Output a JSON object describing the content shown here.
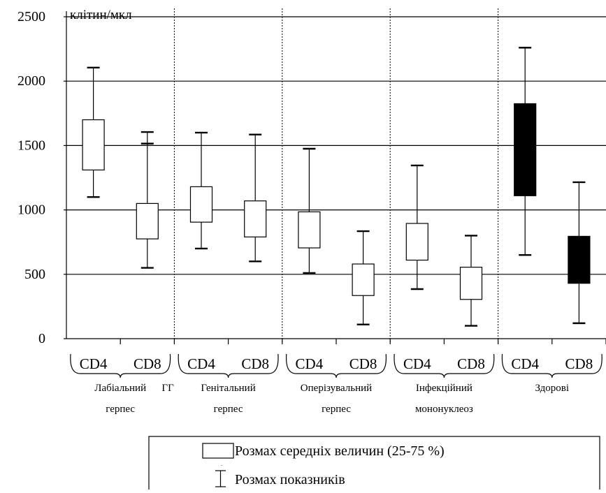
{
  "chart_data": {
    "type": "boxplot",
    "unit_label": "клітин/мкл",
    "ylim": [
      0,
      2500
    ],
    "yticks": [
      0,
      500,
      1000,
      1500,
      2000,
      2500
    ],
    "grid": "horizontal",
    "legend_position": "bottom-right",
    "groups": [
      {
        "line1": "Лабіальний",
        "line2": "герпес",
        "series": [
          {
            "name": "CD4",
            "min": 1100,
            "q1": 1310,
            "q3": 1700,
            "max": 2105,
            "fill": "#ffffff"
          },
          {
            "name": "CD8",
            "min": 550,
            "q1": 775,
            "q3": 1050,
            "max": 1605,
            "extra_whisker": 1515,
            "fill": "#ffffff"
          }
        ]
      },
      {
        "line1": "Генітальний",
        "line2": "герпес",
        "prefix": "ГГ",
        "series": [
          {
            "name": "CD4",
            "min": 700,
            "q1": 905,
            "q3": 1180,
            "max": 1600,
            "fill": "#ffffff"
          },
          {
            "name": "CD8",
            "min": 600,
            "q1": 790,
            "q3": 1070,
            "max": 1585,
            "fill": "#ffffff"
          }
        ]
      },
      {
        "line1": "Оперізувальний",
        "line2": "герпес",
        "series": [
          {
            "name": "CD4",
            "min": 510,
            "q1": 705,
            "q3": 985,
            "max": 1475,
            "fill": "#ffffff"
          },
          {
            "name": "CD8",
            "min": 110,
            "q1": 335,
            "q3": 580,
            "max": 835,
            "fill": "#ffffff"
          }
        ]
      },
      {
        "line1": "Інфекційний",
        "line2": "мононуклеоз",
        "series": [
          {
            "name": "CD4",
            "min": 385,
            "q1": 610,
            "q3": 895,
            "max": 1345,
            "fill": "#ffffff"
          },
          {
            "name": "CD8",
            "min": 100,
            "q1": 305,
            "q3": 555,
            "max": 800,
            "fill": "#ffffff"
          }
        ]
      },
      {
        "line1": "Здорові",
        "line2": "",
        "series": [
          {
            "name": "CD4",
            "min": 650,
            "q1": 1110,
            "q3": 1825,
            "max": 2260,
            "fill": "#000000"
          },
          {
            "name": "CD8",
            "min": 120,
            "q1": 430,
            "q3": 795,
            "max": 1215,
            "fill": "#000000"
          }
        ]
      }
    ],
    "legend": {
      "box_label": "Розмах середніх величин (25-75 %)",
      "whisker_label": "Розмах показників"
    }
  }
}
